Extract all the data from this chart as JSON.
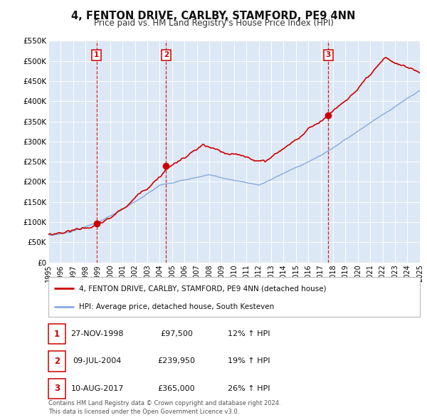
{
  "title": "4, FENTON DRIVE, CARLBY, STAMFORD, PE9 4NN",
  "subtitle": "Price paid vs. HM Land Registry's House Price Index (HPI)",
  "background_color": "#ffffff",
  "plot_bg_color": "#dce8f5",
  "grid_color": "#ffffff",
  "xmin": 1995,
  "xmax": 2025,
  "ymin": 0,
  "ymax": 550000,
  "yticks": [
    0,
    50000,
    100000,
    150000,
    200000,
    250000,
    300000,
    350000,
    400000,
    450000,
    500000,
    550000
  ],
  "ytick_labels": [
    "£0",
    "£50K",
    "£100K",
    "£150K",
    "£200K",
    "£250K",
    "£300K",
    "£350K",
    "£400K",
    "£450K",
    "£500K",
    "£550K"
  ],
  "xticks": [
    1995,
    1996,
    1997,
    1998,
    1999,
    2000,
    2001,
    2002,
    2003,
    2004,
    2005,
    2006,
    2007,
    2008,
    2009,
    2010,
    2011,
    2012,
    2013,
    2014,
    2015,
    2016,
    2017,
    2018,
    2019,
    2020,
    2021,
    2022,
    2023,
    2024,
    2025
  ],
  "sale_color": "#cc0000",
  "hpi_color": "#88aadd",
  "sale_dot_color": "#cc0000",
  "vline_color": "#cc0000",
  "sale_dates": [
    1998.9,
    2004.52,
    2017.61
  ],
  "sale_prices": [
    97500,
    239950,
    365000
  ],
  "sale_labels": [
    "1",
    "2",
    "3"
  ],
  "legend_sale_label": "4, FENTON DRIVE, CARLBY, STAMFORD, PE9 4NN (detached house)",
  "legend_hpi_label": "HPI: Average price, detached house, South Kesteven",
  "table_rows": [
    {
      "num": "1",
      "date": "27-NOV-1998",
      "price": "£97,500",
      "change": "12% ↑ HPI"
    },
    {
      "num": "2",
      "date": "09-JUL-2004",
      "price": "£239,950",
      "change": "19% ↑ HPI"
    },
    {
      "num": "3",
      "date": "10-AUG-2017",
      "price": "£365,000",
      "change": "26% ↑ HPI"
    }
  ],
  "footer": "Contains HM Land Registry data © Crown copyright and database right 2024.\nThis data is licensed under the Open Government Licence v3.0."
}
